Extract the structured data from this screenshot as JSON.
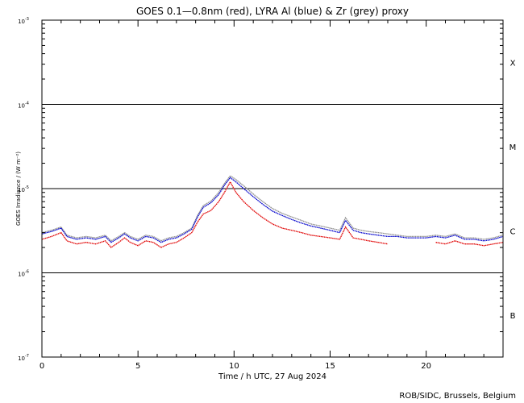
{
  "chart_data": {
    "type": "line",
    "title": "GOES 0.1—0.8nm (red), LYRA Al (blue) & Zr (grey) proxy",
    "xlabel": "Time / h UTC, 27 Aug 2024",
    "ylabel": "GOES Irradiance / (W m⁻²)",
    "yscale": "log",
    "xlim": [
      0,
      24
    ],
    "ylim": [
      1e-07,
      0.001
    ],
    "x_ticks": [
      0,
      5,
      10,
      15,
      20
    ],
    "y_ticks": [
      {
        "value": 1e-07,
        "mantissa": "10",
        "exp": "-7"
      },
      {
        "value": 1e-06,
        "mantissa": "10",
        "exp": "-6"
      },
      {
        "value": 1e-05,
        "mantissa": "10",
        "exp": "-5"
      },
      {
        "value": 0.0001,
        "mantissa": "10",
        "exp": "-4"
      },
      {
        "value": 0.001,
        "mantissa": "10",
        "exp": "-3"
      }
    ],
    "flare_class_levels": [
      1e-06,
      1e-05,
      0.0001
    ],
    "flare_classes": [
      {
        "label": "B",
        "value": 3.16e-07
      },
      {
        "label": "C",
        "value": 3.16e-06
      },
      {
        "label": "M",
        "value": 3.16e-05
      },
      {
        "label": "X",
        "value": 0.000316
      }
    ],
    "x": [
      0.0,
      0.5,
      1.0,
      1.3,
      1.8,
      2.3,
      2.8,
      3.3,
      3.6,
      4.0,
      4.3,
      4.6,
      5.0,
      5.4,
      5.8,
      6.2,
      6.6,
      7.0,
      7.4,
      7.8,
      8.1,
      8.4,
      8.8,
      9.2,
      9.5,
      9.8,
      10.1,
      10.5,
      11.0,
      11.5,
      12.0,
      12.5,
      13.0,
      13.5,
      14.0,
      14.5,
      15.0,
      15.5,
      15.8,
      16.2,
      16.6,
      17.0,
      17.5,
      18.0,
      18.5,
      19.0,
      19.5,
      20.0,
      20.5,
      21.0,
      21.5,
      22.0,
      22.5,
      23.0,
      23.5,
      24.0
    ],
    "series": [
      {
        "name": "GOES 0.1—0.8nm",
        "color": "#e00000",
        "values": [
          2.5e-06,
          2.7e-06,
          3e-06,
          2.4e-06,
          2.2e-06,
          2.3e-06,
          2.2e-06,
          2.4e-06,
          2e-06,
          2.3e-06,
          2.6e-06,
          2.3e-06,
          2.1e-06,
          2.4e-06,
          2.3e-06,
          2e-06,
          2.2e-06,
          2.3e-06,
          2.6e-06,
          3e-06,
          4e-06,
          5e-06,
          5.5e-06,
          7e-06,
          9e-06,
          1.2e-05,
          9e-06,
          7e-06,
          5.5e-06,
          4.5e-06,
          3.8e-06,
          3.4e-06,
          3.2e-06,
          3e-06,
          2.8e-06,
          2.7e-06,
          2.6e-06,
          2.5e-06,
          3.5e-06,
          2.6e-06,
          2.5e-06,
          2.4e-06,
          2.3e-06,
          2.2e-06,
          null,
          null,
          null,
          null,
          2.3e-06,
          2.2e-06,
          2.4e-06,
          2.2e-06,
          2.2e-06,
          2.1e-06,
          2.2e-06,
          2.3e-06
        ]
      },
      {
        "name": "LYRA Al proxy",
        "color": "#0000cc",
        "values": [
          2.9e-06,
          3.1e-06,
          3.4e-06,
          2.7e-06,
          2.5e-06,
          2.6e-06,
          2.5e-06,
          2.7e-06,
          2.3e-06,
          2.6e-06,
          2.9e-06,
          2.6e-06,
          2.4e-06,
          2.7e-06,
          2.6e-06,
          2.3e-06,
          2.5e-06,
          2.6e-06,
          2.9e-06,
          3.3e-06,
          4.6e-06,
          6e-06,
          6.8e-06,
          8.5e-06,
          1.1e-05,
          1.35e-05,
          1.2e-05,
          1e-05,
          8e-06,
          6.5e-06,
          5.4e-06,
          4.8e-06,
          4.3e-06,
          3.9e-06,
          3.6e-06,
          3.4e-06,
          3.2e-06,
          3e-06,
          4.2e-06,
          3.2e-06,
          3e-06,
          2.9e-06,
          2.8e-06,
          2.7e-06,
          2.7e-06,
          2.6e-06,
          2.6e-06,
          2.6e-06,
          2.7e-06,
          2.6e-06,
          2.8e-06,
          2.5e-06,
          2.5e-06,
          2.4e-06,
          2.5e-06,
          2.7e-06
        ]
      },
      {
        "name": "LYRA Zr proxy",
        "color": "#8c8c8c",
        "values": [
          3e-06,
          3.2e-06,
          3.5e-06,
          2.8e-06,
          2.6e-06,
          2.7e-06,
          2.6e-06,
          2.8e-06,
          2.4e-06,
          2.7e-06,
          3e-06,
          2.7e-06,
          2.5e-06,
          2.8e-06,
          2.7e-06,
          2.4e-06,
          2.6e-06,
          2.7e-06,
          3e-06,
          3.4e-06,
          4.8e-06,
          6.3e-06,
          7.1e-06,
          9e-06,
          1.15e-05,
          1.42e-05,
          1.28e-05,
          1.08e-05,
          8.6e-06,
          7e-06,
          5.8e-06,
          5.1e-06,
          4.6e-06,
          4.2e-06,
          3.8e-06,
          3.6e-06,
          3.4e-06,
          3.2e-06,
          4.5e-06,
          3.4e-06,
          3.2e-06,
          3.1e-06,
          3e-06,
          2.9e-06,
          2.8e-06,
          2.7e-06,
          2.7e-06,
          2.7e-06,
          2.8e-06,
          2.7e-06,
          2.9e-06,
          2.6e-06,
          2.6e-06,
          2.5e-06,
          2.6e-06,
          2.8e-06
        ]
      }
    ],
    "grid": false,
    "legend": "none"
  },
  "credit": "ROB/SIDC, Brussels, Belgium"
}
